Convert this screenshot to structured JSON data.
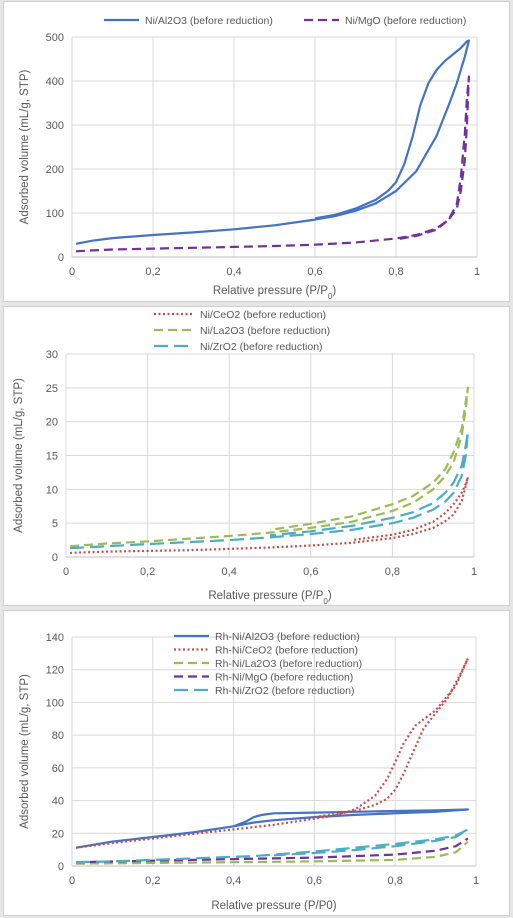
{
  "chart_data": [
    {
      "type": "line",
      "xlabel": "Relative pressure (P/P",
      "xlabel_sub": "0",
      "xlabel_end": ")",
      "ylabel": "Adsorbed volume (mL/g, STP)",
      "xlim": [
        0,
        1
      ],
      "ylim": [
        0,
        500
      ],
      "xticks": [
        "0",
        "0,2",
        "0,4",
        "0,6",
        "0,8",
        "1"
      ],
      "yticks": [
        "0",
        "100",
        "200",
        "300",
        "400",
        "500"
      ],
      "grid": true,
      "legend_position": "top",
      "series": [
        {
          "name": "Ni/Al2O3 (before reduction)",
          "color": "#4472c4",
          "dash": "solid",
          "x": [
            0.01,
            0.05,
            0.1,
            0.2,
            0.3,
            0.4,
            0.5,
            0.6,
            0.65,
            0.7,
            0.75,
            0.8,
            0.85,
            0.9,
            0.93,
            0.95,
            0.97,
            0.98,
            0.975,
            0.96,
            0.94,
            0.92,
            0.9,
            0.88,
            0.86,
            0.84,
            0.82,
            0.8,
            0.78,
            0.75,
            0.7,
            0.65,
            0.6
          ],
          "y": [
            30,
            37,
            43,
            50,
            56,
            63,
            72,
            85,
            93,
            105,
            122,
            150,
            195,
            275,
            345,
            395,
            455,
            492,
            490,
            475,
            460,
            445,
            425,
            395,
            345,
            270,
            210,
            170,
            150,
            130,
            110,
            96,
            88
          ]
        },
        {
          "name": "Ni/MgO (before reduction)",
          "color": "#7030a0",
          "dash": "dashed",
          "x": [
            0.01,
            0.05,
            0.1,
            0.2,
            0.3,
            0.4,
            0.5,
            0.6,
            0.7,
            0.8,
            0.85,
            0.9,
            0.93,
            0.95,
            0.96,
            0.97,
            0.975,
            0.98,
            0.975,
            0.97,
            0.96,
            0.95,
            0.93,
            0.9,
            0.85,
            0.8
          ],
          "y": [
            13,
            15,
            17,
            19,
            21,
            23,
            25,
            28,
            33,
            42,
            50,
            65,
            85,
            110,
            150,
            220,
            300,
            410,
            360,
            280,
            180,
            120,
            85,
            62,
            48,
            40
          ]
        }
      ]
    },
    {
      "type": "line",
      "xlabel": "Relative pressure (P/P",
      "xlabel_sub": "0",
      "xlabel_end": ")",
      "ylabel": "Adsorbed volume (mL/g, STP)",
      "xlim": [
        0,
        1
      ],
      "ylim": [
        0,
        30
      ],
      "xticks": [
        "0",
        "0,2",
        "0,4",
        "0,6",
        "0,8",
        "1"
      ],
      "yticks": [
        "0",
        "5",
        "10",
        "15",
        "20",
        "25",
        "30"
      ],
      "grid": true,
      "legend_position": "top",
      "series": [
        {
          "name": "Ni/CeO2 (before reduction)",
          "color": "#c0504d",
          "dash": "dotted",
          "x": [
            0.01,
            0.1,
            0.2,
            0.3,
            0.4,
            0.5,
            0.6,
            0.7,
            0.8,
            0.85,
            0.9,
            0.93,
            0.95,
            0.97,
            0.98,
            0.985,
            0.98,
            0.97,
            0.95,
            0.93,
            0.9,
            0.85,
            0.8,
            0.7
          ],
          "y": [
            0.6,
            0.8,
            0.9,
            1.0,
            1.2,
            1.4,
            1.7,
            2.1,
            2.8,
            3.4,
            4.3,
            5.3,
            6.3,
            8.3,
            10.5,
            11.8,
            10.8,
            9.5,
            7.8,
            6.5,
            5.2,
            4.0,
            3.3,
            2.5
          ]
        },
        {
          "name": "Ni/La2O3 (before reduction)",
          "color": "#9bbb59",
          "dash": "dashed",
          "x": [
            0.01,
            0.1,
            0.2,
            0.3,
            0.4,
            0.5,
            0.6,
            0.7,
            0.8,
            0.85,
            0.9,
            0.93,
            0.95,
            0.97,
            0.98,
            0.985,
            0.98,
            0.97,
            0.95,
            0.93,
            0.9,
            0.85,
            0.8,
            0.7,
            0.6,
            0.5
          ],
          "y": [
            1.6,
            2.0,
            2.3,
            2.7,
            3.1,
            3.6,
            4.3,
            5.2,
            6.8,
            8.0,
            10.0,
            12.0,
            14.0,
            18.0,
            22.0,
            25.0,
            23.0,
            19.0,
            15.5,
            13.0,
            11.0,
            9.0,
            7.8,
            6.0,
            4.9,
            4.0
          ]
        },
        {
          "name": "Ni/ZrO2 (before reduction)",
          "color": "#4bacc6",
          "dash": "longdash",
          "x": [
            0.01,
            0.1,
            0.2,
            0.3,
            0.4,
            0.5,
            0.6,
            0.7,
            0.8,
            0.85,
            0.9,
            0.93,
            0.95,
            0.97,
            0.98,
            0.985,
            0.98,
            0.97,
            0.95,
            0.93,
            0.9,
            0.85,
            0.8,
            0.7,
            0.6,
            0.5
          ],
          "y": [
            1.3,
            1.6,
            1.9,
            2.2,
            2.5,
            2.9,
            3.4,
            4.0,
            5.0,
            5.8,
            7.0,
            8.2,
            9.5,
            12.0,
            15.0,
            18.5,
            16.5,
            13.5,
            11.0,
            9.5,
            8.0,
            6.6,
            5.8,
            4.6,
            3.8,
            3.2
          ]
        }
      ]
    },
    {
      "type": "line",
      "xlabel": "Relative pressure (P/P0)",
      "ylabel": "Adsorbed volume (mL/g, STP)",
      "xlim": [
        0,
        1
      ],
      "ylim": [
        0,
        150
      ],
      "xticks": [
        "0",
        "0,2",
        "0,4",
        "0,6",
        "0,8",
        "1"
      ],
      "yticks": [
        "0",
        "20",
        "40",
        "60",
        "80",
        "100",
        "120",
        "140"
      ],
      "grid": true,
      "legend_position": "top",
      "series": [
        {
          "name": "Rh-Ni/Al2O3 (before reduction)",
          "color": "#4472c4",
          "dash": "solid",
          "x": [
            0.01,
            0.1,
            0.2,
            0.3,
            0.4,
            0.43,
            0.45,
            0.47,
            0.5,
            0.6,
            0.7,
            0.8,
            0.9,
            0.98,
            0.95,
            0.9,
            0.8,
            0.7,
            0.6,
            0.5,
            0.45,
            0.42,
            0.4,
            0.3
          ],
          "y": [
            12,
            16,
            19,
            22,
            26,
            29,
            32,
            33.5,
            34.5,
            35,
            35.5,
            36,
            36.5,
            37,
            36.5,
            35.5,
            34.5,
            33.5,
            32,
            30,
            28.5,
            27,
            26,
            22
          ]
        },
        {
          "name": "Rh-Ni/CeO2 (before reduction)",
          "color": "#c0504d",
          "dash": "dotted",
          "x": [
            0.01,
            0.1,
            0.2,
            0.3,
            0.4,
            0.5,
            0.6,
            0.65,
            0.7,
            0.75,
            0.78,
            0.8,
            0.82,
            0.85,
            0.9,
            0.95,
            0.98,
            0.96,
            0.93,
            0.9,
            0.87,
            0.85,
            0.82,
            0.8,
            0.78,
            0.75,
            0.7,
            0.6
          ],
          "y": [
            12,
            15,
            18,
            21,
            24,
            27,
            31,
            33,
            37,
            46,
            57,
            68,
            80,
            92,
            102,
            118,
            136,
            125,
            110,
            100,
            90,
            78,
            60,
            50,
            44,
            40,
            36,
            32
          ]
        },
        {
          "name": "Rh-Ni/La2O3 (before reduction)",
          "color": "#9bbb59",
          "dash": "dashed",
          "x": [
            0.01,
            0.2,
            0.4,
            0.6,
            0.8,
            0.9,
            0.95,
            0.98
          ],
          "y": [
            1.5,
            2,
            2.5,
            3,
            4,
            6,
            9,
            16
          ]
        },
        {
          "name": "Rh-Ni/MgO (before reduction)",
          "color": "#7030a0",
          "dash": "dashed",
          "x": [
            0.01,
            0.2,
            0.4,
            0.6,
            0.8,
            0.9,
            0.95,
            0.98
          ],
          "y": [
            2.5,
            3.5,
            4.5,
            5.5,
            7.5,
            10,
            13,
            18
          ]
        },
        {
          "name": "Rh-Ni/ZrO2 (before reduction)",
          "color": "#4bacc6",
          "dash": "longdash",
          "x": [
            0.01,
            0.1,
            0.2,
            0.3,
            0.4,
            0.45,
            0.5,
            0.6,
            0.7,
            0.8,
            0.9,
            0.95,
            0.98,
            0.95,
            0.9,
            0.8,
            0.7,
            0.6,
            0.5
          ],
          "y": [
            2.5,
            3,
            4,
            5,
            6,
            6.5,
            7.5,
            9.5,
            12,
            14.5,
            17.5,
            20,
            24,
            19,
            16.5,
            13,
            10.5,
            8.5,
            7
          ]
        }
      ]
    }
  ]
}
